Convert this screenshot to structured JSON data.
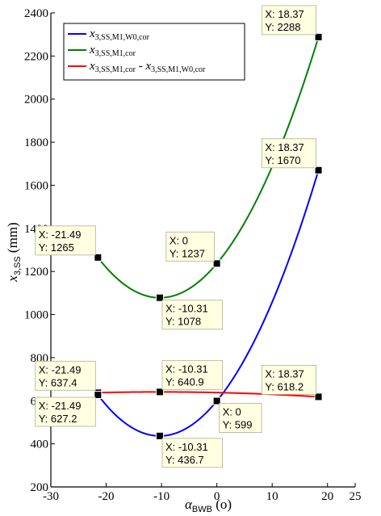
{
  "chart_data": {
    "type": "line",
    "title": "",
    "xlabel": "α",
    "xlabel_sub": "BWB",
    "xlabel_unit": "(o)",
    "ylabel": "x",
    "ylabel_sub": "3,SS",
    "ylabel_unit": "(mm)",
    "xlim": [
      -30,
      25
    ],
    "ylim": [
      200,
      2400
    ],
    "xticks": [
      -30,
      -20,
      -10,
      0,
      10,
      20,
      25
    ],
    "yticks": [
      200,
      400,
      600,
      800,
      1000,
      1200,
      1400,
      1600,
      1800,
      2000,
      2200,
      2400
    ],
    "grid": false,
    "legend_position": "top-left",
    "series": [
      {
        "name": "x3,SS,M1,W0,cor",
        "name_main": "x",
        "name_sub": "3,SS,M1,W0,cor",
        "color": "#0000ff",
        "x": [
          -21.49,
          -10.31,
          0,
          18.37
        ],
        "y": [
          627.2,
          436.7,
          599,
          1670
        ]
      },
      {
        "name": "x3,SS,M1,cor",
        "name_main": "x",
        "name_sub": "3,SS,M1,cor",
        "color": "#008000",
        "x": [
          -21.49,
          -10.31,
          0,
          18.37
        ],
        "y": [
          1265,
          1078,
          1237,
          2288
        ]
      },
      {
        "name": "x3,SS,M1,cor - x3,SS,M1,W0,cor",
        "name_main": "x",
        "name_sub": "3,SS,M1,cor",
        "name_mid": " - x",
        "name_sub2": "3,SS,M1,W0,cor",
        "color": "#ff0000",
        "x": [
          -21.49,
          -10.31,
          0,
          18.37
        ],
        "y": [
          637.4,
          640.9,
          618.2,
          618.2
        ]
      }
    ],
    "datatips": [
      {
        "x": 18.37,
        "y": 2288,
        "label_x": "X: 18.37",
        "label_y": "Y: 2288",
        "side": "upper-left"
      },
      {
        "x": 18.37,
        "y": 1670,
        "label_x": "X: 18.37",
        "label_y": "Y: 1670",
        "side": "upper-left"
      },
      {
        "x": -21.49,
        "y": 1265,
        "label_x": "X: -21.49",
        "label_y": "Y: 1265",
        "side": "upper-left"
      },
      {
        "x": 0,
        "y": 1237,
        "label_x": "X: 0",
        "label_y": "Y: 1237",
        "side": "upper-left"
      },
      {
        "x": -10.31,
        "y": 1078,
        "label_x": "X: -10.31",
        "label_y": "Y: 1078",
        "side": "lower-right"
      },
      {
        "x": -21.49,
        "y": 637.4,
        "label_x": "X: -21.49",
        "label_y": "Y: 637.4",
        "side": "upper-left"
      },
      {
        "x": -10.31,
        "y": 640.9,
        "label_x": "X: -10.31",
        "label_y": "Y: 640.9",
        "side": "upper-right"
      },
      {
        "x": 18.37,
        "y": 618.2,
        "label_x": "X: 18.37",
        "label_y": "Y: 618.2",
        "side": "upper-left"
      },
      {
        "x": -21.49,
        "y": 627.2,
        "label_x": "X: -21.49",
        "label_y": "Y: 627.2",
        "side": "lower-left"
      },
      {
        "x": 0,
        "y": 599,
        "label_x": "X: 0",
        "label_y": "Y: 599",
        "side": "lower-right"
      },
      {
        "x": -10.31,
        "y": 436.7,
        "label_x": "X: -10.31",
        "label_y": "Y: 436.7",
        "side": "lower-right"
      }
    ]
  }
}
